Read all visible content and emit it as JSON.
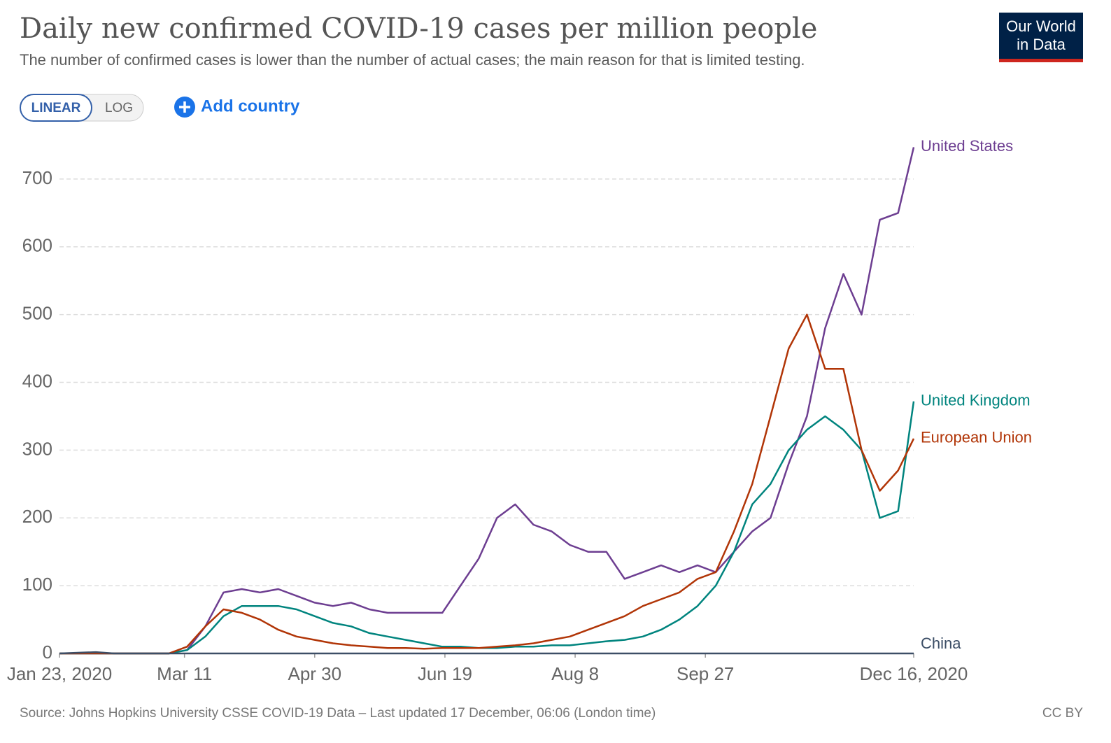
{
  "chart_data": {
    "type": "line",
    "title": "Daily new confirmed COVID-19 cases per million people",
    "subtitle": "The number of confirmed cases is lower than the number of actual cases; the main reason for that is limited testing.",
    "x": [
      0,
      7,
      14,
      21,
      28,
      35,
      42,
      49,
      56,
      63,
      70,
      77,
      84,
      91,
      98,
      105,
      112,
      119,
      126,
      133,
      140,
      147,
      154,
      161,
      168,
      175,
      182,
      189,
      196,
      203,
      210,
      217,
      224,
      231,
      238,
      245,
      252,
      259,
      266,
      273,
      280,
      287,
      294,
      301,
      308,
      315,
      322,
      328
    ],
    "xlim": [
      0,
      328
    ],
    "xticks": [
      {
        "value": 0,
        "label": "Jan 23, 2020"
      },
      {
        "value": 48,
        "label": "Mar 11"
      },
      {
        "value": 98,
        "label": "Apr 30"
      },
      {
        "value": 148,
        "label": "Jun 19"
      },
      {
        "value": 198,
        "label": "Aug 8"
      },
      {
        "value": 248,
        "label": "Sep 27"
      },
      {
        "value": 328,
        "label": "Dec 16, 2020"
      }
    ],
    "ylim": [
      0,
      750
    ],
    "yticks": [
      0,
      100,
      200,
      300,
      400,
      500,
      600,
      700
    ],
    "grid": true,
    "series": [
      {
        "name": "United States",
        "color": "#6d3e91",
        "values": [
          0,
          0,
          0,
          0,
          0,
          0,
          0,
          5,
          40,
          90,
          95,
          90,
          95,
          85,
          75,
          70,
          75,
          65,
          60,
          60,
          60,
          60,
          100,
          140,
          200,
          220,
          190,
          180,
          160,
          150,
          150,
          110,
          120,
          130,
          120,
          130,
          120,
          150,
          180,
          200,
          280,
          350,
          480,
          560,
          500,
          640,
          650,
          747
        ]
      },
      {
        "name": "United Kingdom",
        "color": "#00847e",
        "values": [
          0,
          0,
          0,
          0,
          0,
          0,
          0,
          5,
          25,
          55,
          70,
          70,
          70,
          65,
          55,
          45,
          40,
          30,
          25,
          20,
          15,
          10,
          10,
          8,
          8,
          10,
          10,
          12,
          12,
          15,
          18,
          20,
          25,
          35,
          50,
          70,
          100,
          150,
          220,
          250,
          300,
          330,
          350,
          330,
          300,
          200,
          210,
          372
        ]
      },
      {
        "name": "European Union",
        "color": "#b13507",
        "values": [
          0,
          0,
          0,
          0,
          0,
          0,
          0,
          10,
          40,
          65,
          60,
          50,
          35,
          25,
          20,
          15,
          12,
          10,
          8,
          8,
          7,
          8,
          8,
          8,
          10,
          12,
          15,
          20,
          25,
          35,
          45,
          55,
          70,
          80,
          90,
          110,
          120,
          180,
          250,
          350,
          450,
          500,
          420,
          420,
          300,
          240,
          270,
          317
        ]
      },
      {
        "name": "China",
        "color": "#3c4e66",
        "values": [
          0,
          1,
          2,
          0,
          0,
          0,
          0,
          0,
          0,
          0,
          0,
          0,
          0,
          0,
          0,
          0,
          0,
          0,
          0,
          0,
          0,
          0,
          0,
          0,
          0,
          0,
          0,
          0,
          0,
          0,
          0,
          0,
          0,
          0,
          0,
          0,
          0,
          0,
          0,
          0,
          0,
          0,
          0,
          0,
          0,
          0,
          0,
          0
        ]
      }
    ]
  },
  "controls": {
    "linear": "LINEAR",
    "log": "LOG",
    "add_country": "Add country"
  },
  "logo": {
    "line1": "Our World",
    "line2": "in Data"
  },
  "footer": {
    "source": "Source: Johns Hopkins University CSSE COVID-19 Data – Last updated 17 December, 06:06 (London time)",
    "license": "CC BY"
  }
}
